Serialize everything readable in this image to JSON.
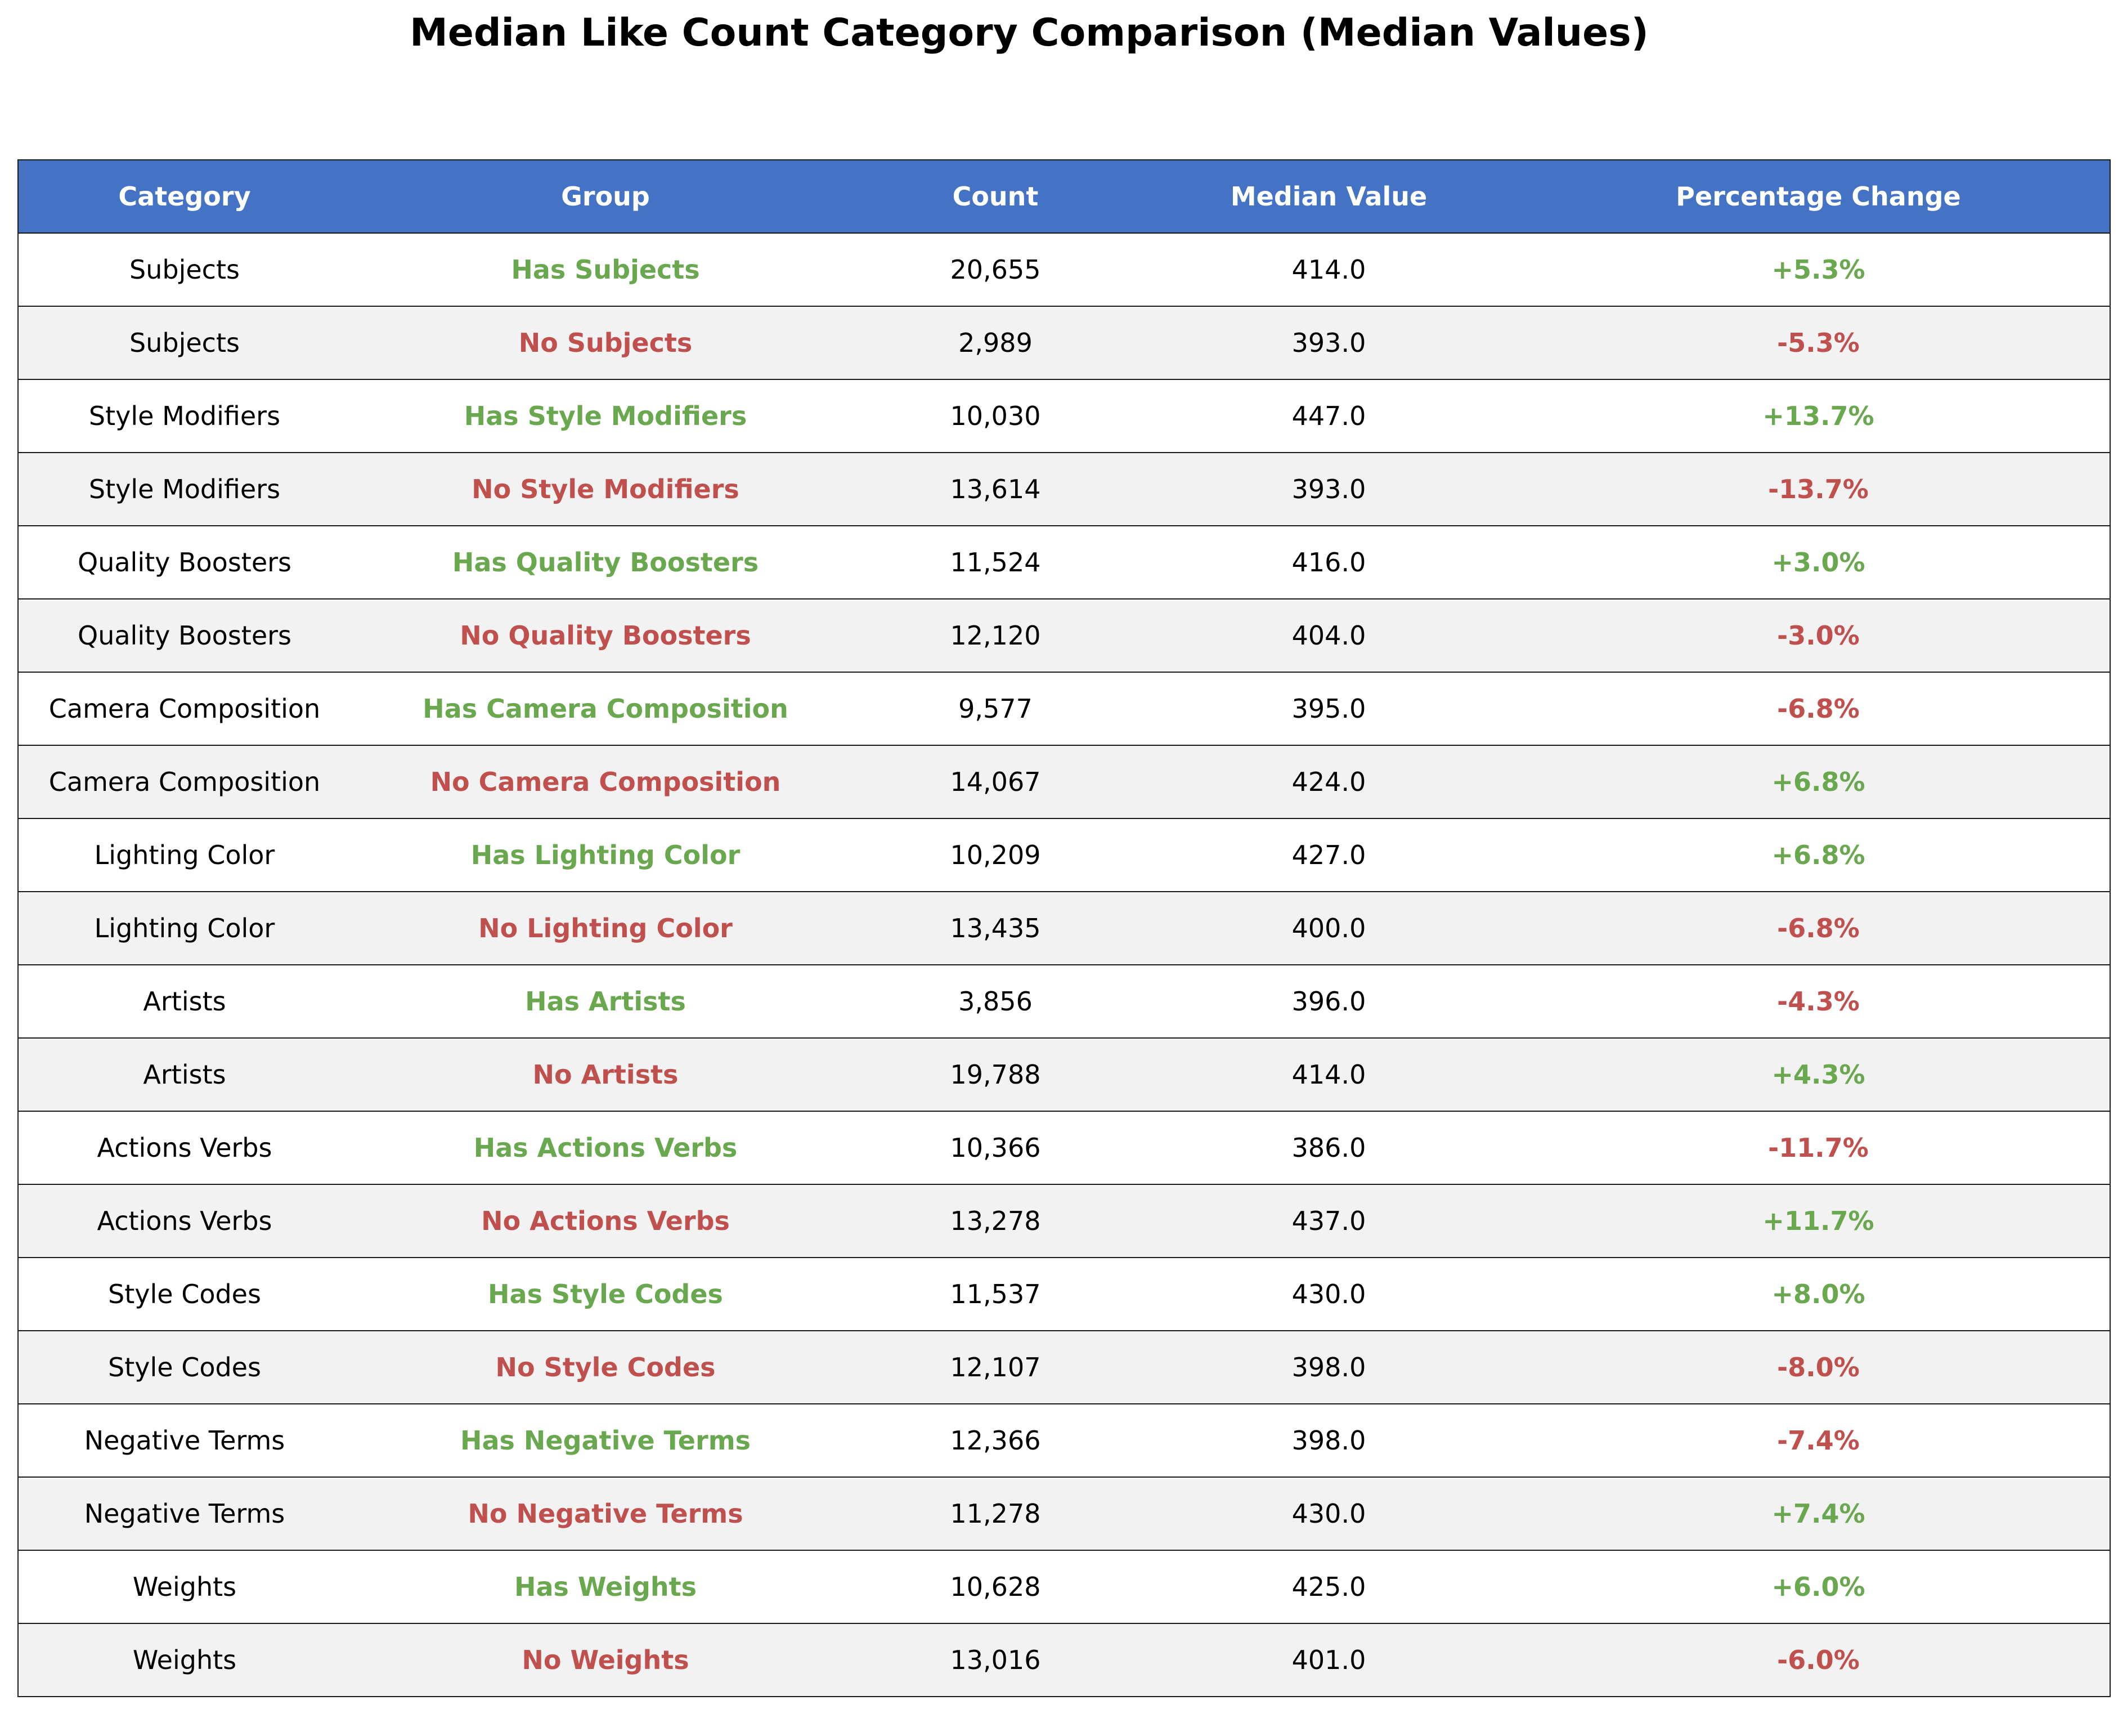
{
  "title": "Median Like Count Category Comparison (Median Values)",
  "colors": {
    "header_bg": "#4472c4",
    "header_text": "#ffffff",
    "positive": "#6aa84f",
    "negative": "#c0504d",
    "row_alt": "#f2f2f2",
    "row": "#ffffff"
  },
  "chart_data": {
    "type": "table",
    "title": "Median Like Count Category Comparison (Median Values)",
    "columns": [
      "Category",
      "Group",
      "Count",
      "Median Value",
      "Percentage Change"
    ],
    "rows": [
      {
        "category": "Subjects",
        "group": "Has Subjects",
        "count": "20,655",
        "median": "414.0",
        "change": "+5.3%"
      },
      {
        "category": "Subjects",
        "group": "No Subjects",
        "count": "2,989",
        "median": "393.0",
        "change": "-5.3%"
      },
      {
        "category": "Style Modifiers",
        "group": "Has Style Modifiers",
        "count": "10,030",
        "median": "447.0",
        "change": "+13.7%"
      },
      {
        "category": "Style Modifiers",
        "group": "No Style Modifiers",
        "count": "13,614",
        "median": "393.0",
        "change": "-13.7%"
      },
      {
        "category": "Quality Boosters",
        "group": "Has Quality Boosters",
        "count": "11,524",
        "median": "416.0",
        "change": "+3.0%"
      },
      {
        "category": "Quality Boosters",
        "group": "No Quality Boosters",
        "count": "12,120",
        "median": "404.0",
        "change": "-3.0%"
      },
      {
        "category": "Camera Composition",
        "group": "Has Camera Composition",
        "count": "9,577",
        "median": "395.0",
        "change": "-6.8%"
      },
      {
        "category": "Camera Composition",
        "group": "No Camera Composition",
        "count": "14,067",
        "median": "424.0",
        "change": "+6.8%"
      },
      {
        "category": "Lighting Color",
        "group": "Has Lighting Color",
        "count": "10,209",
        "median": "427.0",
        "change": "+6.8%"
      },
      {
        "category": "Lighting Color",
        "group": "No Lighting Color",
        "count": "13,435",
        "median": "400.0",
        "change": "-6.8%"
      },
      {
        "category": "Artists",
        "group": "Has Artists",
        "count": "3,856",
        "median": "396.0",
        "change": "-4.3%"
      },
      {
        "category": "Artists",
        "group": "No Artists",
        "count": "19,788",
        "median": "414.0",
        "change": "+4.3%"
      },
      {
        "category": "Actions Verbs",
        "group": "Has Actions Verbs",
        "count": "10,366",
        "median": "386.0",
        "change": "-11.7%"
      },
      {
        "category": "Actions Verbs",
        "group": "No Actions Verbs",
        "count": "13,278",
        "median": "437.0",
        "change": "+11.7%"
      },
      {
        "category": "Style Codes",
        "group": "Has Style Codes",
        "count": "11,537",
        "median": "430.0",
        "change": "+8.0%"
      },
      {
        "category": "Style Codes",
        "group": "No Style Codes",
        "count": "12,107",
        "median": "398.0",
        "change": "-8.0%"
      },
      {
        "category": "Negative Terms",
        "group": "Has Negative Terms",
        "count": "12,366",
        "median": "398.0",
        "change": "-7.4%"
      },
      {
        "category": "Negative Terms",
        "group": "No Negative Terms",
        "count": "11,278",
        "median": "430.0",
        "change": "+7.4%"
      },
      {
        "category": "Weights",
        "group": "Has Weights",
        "count": "10,628",
        "median": "425.0",
        "change": "+6.0%"
      },
      {
        "category": "Weights",
        "group": "No Weights",
        "count": "13,016",
        "median": "401.0",
        "change": "-6.0%"
      }
    ]
  }
}
